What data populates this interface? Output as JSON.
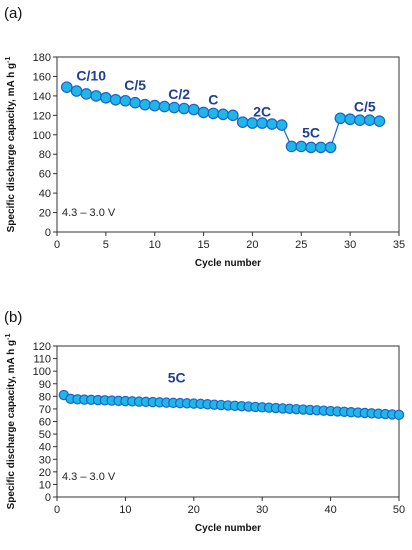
{
  "chart_data": [
    {
      "type": "scatter",
      "panel_label": "(a)",
      "xlabel": "Cycle number",
      "ylabel": "Specific discharge capacity, mA h g",
      "ylabel_sup": "-1",
      "xlim": [
        0,
        35
      ],
      "ylim": [
        0,
        180
      ],
      "xticks": [
        0,
        5,
        10,
        15,
        20,
        25,
        30,
        35
      ],
      "yticks": [
        0,
        20,
        40,
        60,
        80,
        100,
        120,
        140,
        160,
        180
      ],
      "voltage_label": "4.3 – 3.0 V",
      "marker_color": "#1fb6e8",
      "line_color": "#1e62c8",
      "x": [
        1,
        2,
        3,
        4,
        5,
        6,
        7,
        8,
        9,
        10,
        11,
        12,
        13,
        14,
        15,
        16,
        17,
        18,
        19,
        20,
        21,
        22,
        23,
        24,
        25,
        26,
        27,
        28,
        29,
        30,
        31,
        32,
        33
      ],
      "y": [
        149,
        145,
        142,
        140,
        138,
        136,
        135,
        133,
        131,
        130,
        129,
        128,
        127,
        126,
        123,
        122,
        121,
        120,
        113,
        112,
        112,
        111,
        110,
        88,
        88,
        87,
        87,
        87,
        117,
        116,
        115,
        115,
        114
      ],
      "annotations": [
        {
          "text": "C/10",
          "x": 3.5,
          "y": 156
        },
        {
          "text": "C/5",
          "x": 8,
          "y": 146
        },
        {
          "text": "C/2",
          "x": 12.5,
          "y": 137
        },
        {
          "text": "C",
          "x": 16,
          "y": 131
        },
        {
          "text": "2C",
          "x": 21,
          "y": 119
        },
        {
          "text": "5C",
          "x": 26,
          "y": 97
        },
        {
          "text": "C/5",
          "x": 31.5,
          "y": 124
        }
      ]
    },
    {
      "type": "scatter",
      "panel_label": "(b)",
      "xlabel": "Cycle number",
      "ylabel": "Specific discharge capacity, mA h g",
      "ylabel_sup": "-1",
      "xlim": [
        0,
        50
      ],
      "ylim": [
        0,
        120
      ],
      "xticks": [
        0,
        10,
        20,
        30,
        40,
        50
      ],
      "yticks": [
        0,
        10,
        20,
        30,
        40,
        50,
        60,
        70,
        80,
        90,
        100,
        110,
        120
      ],
      "voltage_label": "4.3 – 3.0 V",
      "marker_color": "#1fb6e8",
      "line_color": "#1e62c8",
      "x": [
        1,
        2,
        3,
        4,
        5,
        6,
        7,
        8,
        9,
        10,
        11,
        12,
        13,
        14,
        15,
        16,
        17,
        18,
        19,
        20,
        21,
        22,
        23,
        24,
        25,
        26,
        27,
        28,
        29,
        30,
        31,
        32,
        33,
        34,
        35,
        36,
        37,
        38,
        39,
        40,
        41,
        42,
        43,
        44,
        45,
        46,
        47,
        48,
        49,
        50
      ],
      "y": [
        81,
        78,
        77.6,
        77.4,
        77.2,
        77,
        76.8,
        76.6,
        76.4,
        76.2,
        76,
        75.8,
        75.6,
        75.4,
        75.2,
        75,
        74.8,
        74.6,
        74.4,
        74.2,
        74,
        73.7,
        73.4,
        73.1,
        72.8,
        72.5,
        72.2,
        71.9,
        71.6,
        71.3,
        71,
        70.7,
        70.4,
        70.1,
        69.8,
        69.5,
        69.2,
        68.9,
        68.6,
        68.3,
        68,
        67.7,
        67.4,
        67.1,
        66.8,
        66.5,
        66.2,
        65.9,
        65.6,
        65.3
      ],
      "annotations": [
        {
          "text": "5C",
          "x": 17.5,
          "y": 91
        }
      ]
    }
  ]
}
